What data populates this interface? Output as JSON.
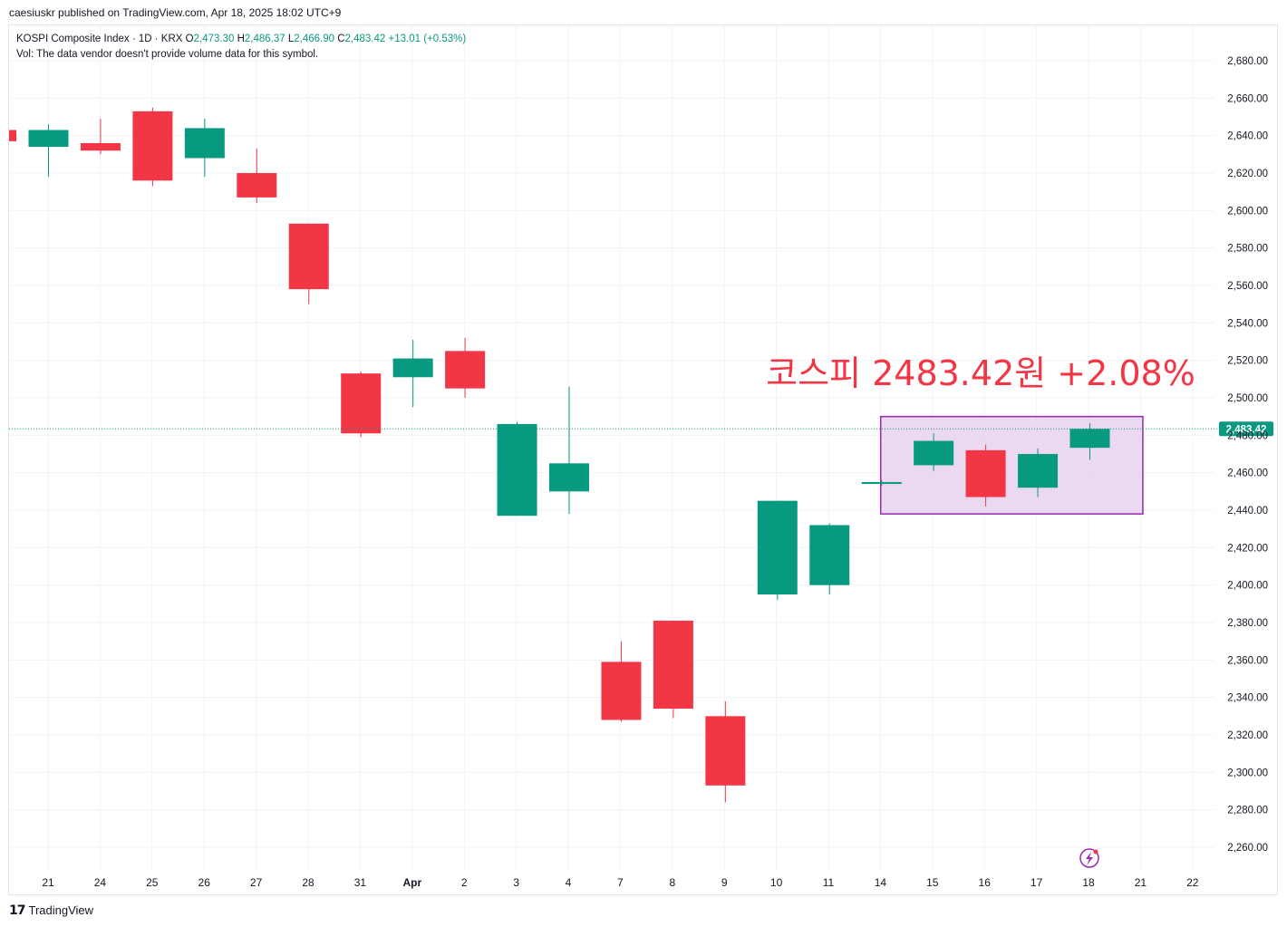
{
  "header": {
    "published": "caesiuskr published on TradingView.com, Apr 18, 2025 18:02 UTC+9"
  },
  "legend": {
    "symbol": "KOSPI Composite Index · 1D · KRX",
    "o_label": "O",
    "o_value": "2,473.30",
    "h_label": "H",
    "h_value": "2,486.37",
    "l_label": "L",
    "l_value": "2,466.90",
    "c_label": "C",
    "c_value": "2,483.42",
    "change": "+13.01 (+0.53%)",
    "volume_note": "Vol: The data vendor doesn't provide volume data for this symbol."
  },
  "footer": {
    "logo_icon": "tradingview-logo-icon",
    "brand": "TradingView"
  },
  "colors": {
    "up": "#089981",
    "down": "#f23645",
    "grid": "#f0f3fa",
    "price_line": "#089981",
    "highlight_fill": "#e7d1ef",
    "highlight_stroke": "#9c27b0",
    "annotation": "#f23645"
  },
  "chart_data": {
    "type": "candlestick",
    "ylim": [
      2250,
      2690
    ],
    "y_ticks": [
      2260,
      2280,
      2300,
      2320,
      2340,
      2360,
      2380,
      2400,
      2420,
      2440,
      2460,
      2480,
      2500,
      2520,
      2540,
      2560,
      2580,
      2600,
      2620,
      2640,
      2660,
      2680
    ],
    "y_tick_labels": [
      "2,260.00",
      "2,280.00",
      "2,300.00",
      "2,320.00",
      "2,340.00",
      "2,360.00",
      "2,380.00",
      "2,400.00",
      "2,420.00",
      "2,440.00",
      "2,460.00",
      "2,480.00",
      "2,500.00",
      "2,520.00",
      "2,540.00",
      "2,560.00",
      "2,580.00",
      "2,600.00",
      "2,620.00",
      "2,640.00",
      "2,660.00",
      "2,680.00"
    ],
    "x_tick_labels": [
      "21",
      "24",
      "25",
      "26",
      "27",
      "28",
      "31",
      "Apr",
      "2",
      "3",
      "4",
      "7",
      "8",
      "9",
      "10",
      "11",
      "14",
      "15",
      "16",
      "17",
      "18",
      "21",
      "22"
    ],
    "grid": true,
    "last_price": 2483.42,
    "last_price_label": "2,483.42",
    "annotation": "코스피 2483.42원 +2.08%",
    "candles": [
      {
        "date": "Mar 20",
        "open": 2643,
        "high": 2643,
        "low": 2637,
        "close": 2637
      },
      {
        "date": "Mar 21",
        "open": 2634,
        "high": 2646,
        "low": 2618,
        "close": 2643
      },
      {
        "date": "Mar 24",
        "open": 2636,
        "high": 2649,
        "low": 2630,
        "close": 2632
      },
      {
        "date": "Mar 25",
        "open": 2653,
        "high": 2655,
        "low": 2613,
        "close": 2616
      },
      {
        "date": "Mar 26",
        "open": 2628,
        "high": 2649,
        "low": 2618,
        "close": 2644
      },
      {
        "date": "Mar 27",
        "open": 2620,
        "high": 2633,
        "low": 2604,
        "close": 2607
      },
      {
        "date": "Mar 28",
        "open": 2593,
        "high": 2593,
        "low": 2550,
        "close": 2558
      },
      {
        "date": "Mar 31",
        "open": 2513,
        "high": 2514,
        "low": 2479,
        "close": 2481
      },
      {
        "date": "Apr 1",
        "open": 2511,
        "high": 2531,
        "low": 2495,
        "close": 2521
      },
      {
        "date": "Apr 2",
        "open": 2525,
        "high": 2532,
        "low": 2500,
        "close": 2505
      },
      {
        "date": "Apr 3",
        "open": 2437,
        "high": 2487,
        "low": 2437,
        "close": 2486
      },
      {
        "date": "Apr 4",
        "open": 2450,
        "high": 2506,
        "low": 2438,
        "close": 2465
      },
      {
        "date": "Apr 7",
        "open": 2359,
        "high": 2370,
        "low": 2327,
        "close": 2328
      },
      {
        "date": "Apr 8",
        "open": 2381,
        "high": 2381,
        "low": 2329,
        "close": 2334
      },
      {
        "date": "Apr 9",
        "open": 2330,
        "high": 2338,
        "low": 2284,
        "close": 2293
      },
      {
        "date": "Apr 10",
        "open": 2395,
        "high": 2445,
        "low": 2392,
        "close": 2445
      },
      {
        "date": "Apr 11",
        "open": 2400,
        "high": 2433,
        "low": 2395,
        "close": 2432
      },
      {
        "date": "Apr 14",
        "open": 2454,
        "high": 2456,
        "low": 2453,
        "close": 2455
      },
      {
        "date": "Apr 15",
        "open": 2464,
        "high": 2481,
        "low": 2461,
        "close": 2477
      },
      {
        "date": "Apr 16",
        "open": 2472,
        "high": 2475,
        "low": 2442,
        "close": 2447
      },
      {
        "date": "Apr 17",
        "open": 2452,
        "high": 2473,
        "low": 2447,
        "close": 2470
      },
      {
        "date": "Apr 18",
        "open": 2473.3,
        "high": 2486.37,
        "low": 2466.9,
        "close": 2483.42
      }
    ],
    "highlight_box": {
      "from_date": "Apr 14",
      "to_date": "Apr 21",
      "y_from": 2438,
      "y_to": 2490
    }
  }
}
